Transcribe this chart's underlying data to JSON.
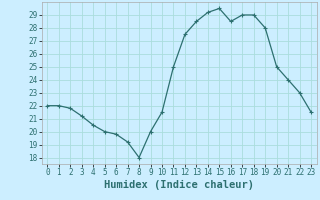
{
  "x": [
    0,
    1,
    2,
    3,
    4,
    5,
    6,
    7,
    8,
    9,
    10,
    11,
    12,
    13,
    14,
    15,
    16,
    17,
    18,
    19,
    20,
    21,
    22,
    23
  ],
  "y": [
    22,
    22,
    21.8,
    21.2,
    20.5,
    20.0,
    19.8,
    19.2,
    18.0,
    20.0,
    21.5,
    25.0,
    27.5,
    28.5,
    29.2,
    29.5,
    28.5,
    29.0,
    29.0,
    28.0,
    25.0,
    24.0,
    23.0,
    21.5
  ],
  "line_color": "#2d7070",
  "marker": "+",
  "marker_size": 4,
  "bg_color": "#cceeff",
  "grid_major_color": "#aadddd",
  "grid_minor_color": "#bbdddd",
  "xlabel": "Humidex (Indice chaleur)",
  "xlim": [
    -0.5,
    23.5
  ],
  "ylim": [
    17.5,
    30.0
  ],
  "yticks": [
    18,
    19,
    20,
    21,
    22,
    23,
    24,
    25,
    26,
    27,
    28,
    29
  ],
  "xticks": [
    0,
    1,
    2,
    3,
    4,
    5,
    6,
    7,
    8,
    9,
    10,
    11,
    12,
    13,
    14,
    15,
    16,
    17,
    18,
    19,
    20,
    21,
    22,
    23
  ],
  "tick_label_fontsize": 5.5,
  "xlabel_fontsize": 7.5,
  "line_width": 0.9,
  "marker_size_pt": 3.5
}
